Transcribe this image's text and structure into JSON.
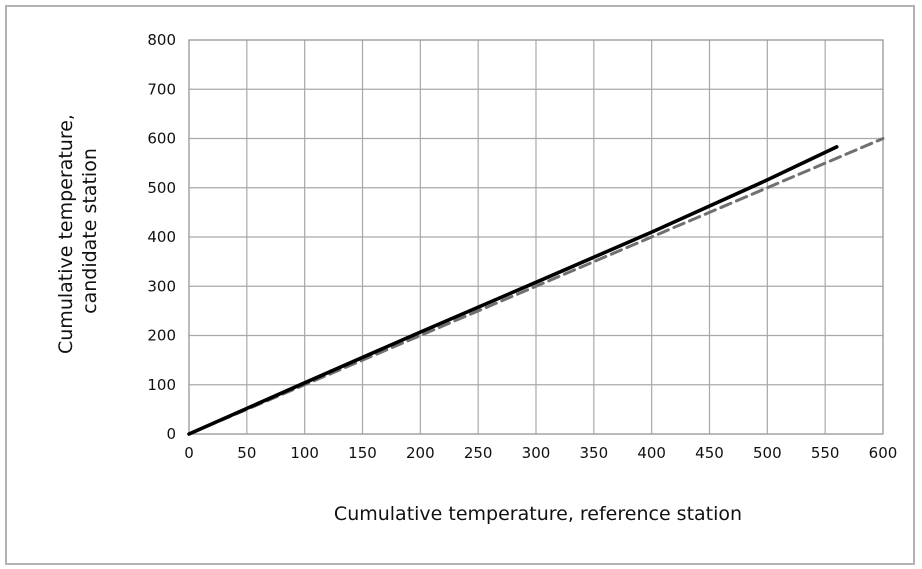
{
  "chart_data": {
    "type": "line",
    "xlabel": "Cumulative temperature, reference station",
    "ylabel": [
      "Cumulative temperature,",
      "candidate station"
    ],
    "xlim": [
      0,
      600
    ],
    "ylim": [
      0,
      800
    ],
    "xticks": [
      "0",
      "50",
      "100",
      "150",
      "200",
      "250",
      "300",
      "350",
      "400",
      "450",
      "500",
      "550",
      "600"
    ],
    "yticks": [
      "0",
      "100",
      "200",
      "300",
      "400",
      "500",
      "600",
      "700",
      "800"
    ],
    "grid": true,
    "legend": "none",
    "series": [
      {
        "style": "solid",
        "color": "#000000",
        "x": [
          0,
          100,
          200,
          300,
          400,
          500,
          560
        ],
        "y": [
          0,
          104,
          207,
          308,
          410,
          516,
          583
        ]
      },
      {
        "style": "dashed",
        "color": "#707070",
        "x": [
          0,
          600
        ],
        "y": [
          0,
          600
        ]
      }
    ]
  }
}
